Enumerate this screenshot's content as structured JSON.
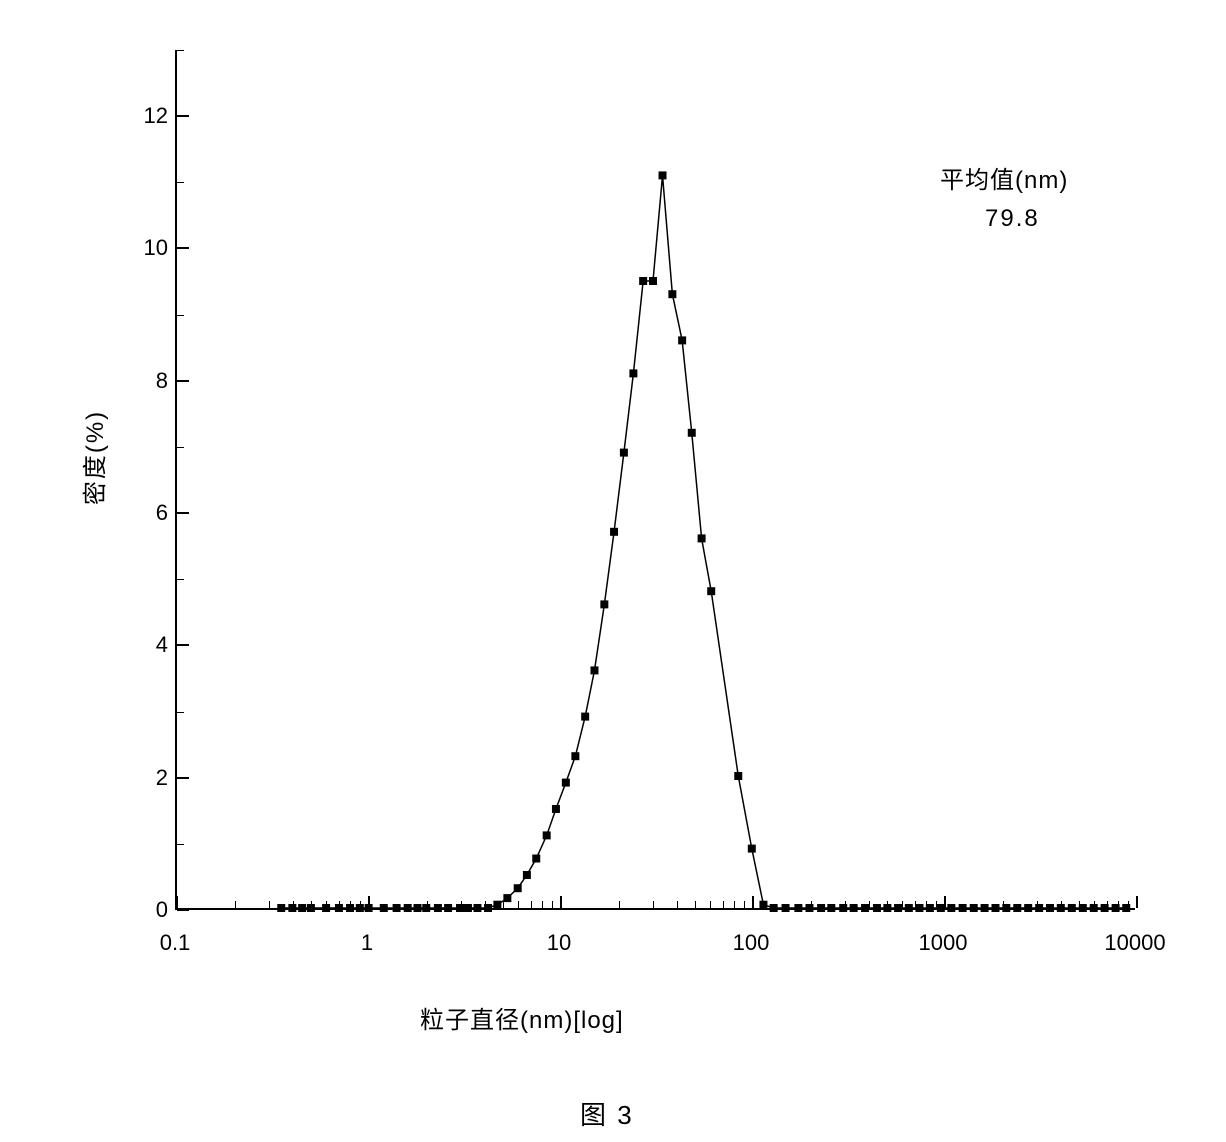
{
  "chart": {
    "type": "line-scatter",
    "y_axis": {
      "label": "密度(%)",
      "ticks": [
        0,
        2,
        4,
        6,
        8,
        10,
        12
      ],
      "minor_step": 1,
      "lim": [
        0,
        13
      ],
      "scale": "linear",
      "label_fontsize": 24,
      "tick_fontsize": 22
    },
    "x_axis": {
      "label": "粒子直径(nm)[log]",
      "ticks": [
        0.1,
        1,
        10,
        100,
        1000,
        10000
      ],
      "lim": [
        0.1,
        10000
      ],
      "scale": "log",
      "label_fontsize": 24,
      "tick_fontsize": 22
    },
    "annotation": {
      "label": "平均值(nm)",
      "value": "79.8",
      "label_fontsize": 24,
      "value_fontsize": 24
    },
    "figure_label": "图 3",
    "line_color": "#000000",
    "line_width": 1.5,
    "marker_style": "square",
    "marker_size": 8,
    "marker_color": "#000000",
    "background_color": "#ffffff",
    "data": [
      [
        0.35,
        0.0
      ],
      [
        0.4,
        0.0
      ],
      [
        0.45,
        0.0
      ],
      [
        0.5,
        0.0
      ],
      [
        0.6,
        0.0
      ],
      [
        0.7,
        0.0
      ],
      [
        0.8,
        0.0
      ],
      [
        0.9,
        0.0
      ],
      [
        1.0,
        0.0
      ],
      [
        1.2,
        0.0
      ],
      [
        1.4,
        0.0
      ],
      [
        1.6,
        0.0
      ],
      [
        1.8,
        0.0
      ],
      [
        2.0,
        0.0
      ],
      [
        2.3,
        0.0
      ],
      [
        2.6,
        0.0
      ],
      [
        3.0,
        0.0
      ],
      [
        3.3,
        0.0
      ],
      [
        3.7,
        0.0
      ],
      [
        4.2,
        0.0
      ],
      [
        4.7,
        0.05
      ],
      [
        5.3,
        0.15
      ],
      [
        6.0,
        0.3
      ],
      [
        6.7,
        0.5
      ],
      [
        7.5,
        0.75
      ],
      [
        8.5,
        1.1
      ],
      [
        9.5,
        1.5
      ],
      [
        10.7,
        1.9
      ],
      [
        12.0,
        2.3
      ],
      [
        13.5,
        2.9
      ],
      [
        15.1,
        3.6
      ],
      [
        17.0,
        4.6
      ],
      [
        19.1,
        5.7
      ],
      [
        21.5,
        6.9
      ],
      [
        24.1,
        8.1
      ],
      [
        27.1,
        9.5
      ],
      [
        30.5,
        9.5
      ],
      [
        34.2,
        11.1
      ],
      [
        38.5,
        9.3
      ],
      [
        43.3,
        8.6
      ],
      [
        48.6,
        7.2
      ],
      [
        54.7,
        5.6
      ],
      [
        61.4,
        4.8
      ],
      [
        85.0,
        2.0
      ],
      [
        100.0,
        0.9
      ],
      [
        115.0,
        0.05
      ],
      [
        130,
        0.0
      ],
      [
        150,
        0.0
      ],
      [
        175,
        0.0
      ],
      [
        200,
        0.0
      ],
      [
        230,
        0.0
      ],
      [
        260,
        0.0
      ],
      [
        300,
        0.0
      ],
      [
        340,
        0.0
      ],
      [
        390,
        0.0
      ],
      [
        450,
        0.0
      ],
      [
        510,
        0.0
      ],
      [
        580,
        0.0
      ],
      [
        660,
        0.0
      ],
      [
        750,
        0.0
      ],
      [
        850,
        0.0
      ],
      [
        970,
        0.0
      ],
      [
        1100,
        0.0
      ],
      [
        1260,
        0.0
      ],
      [
        1440,
        0.0
      ],
      [
        1640,
        0.0
      ],
      [
        1870,
        0.0
      ],
      [
        2130,
        0.0
      ],
      [
        2430,
        0.0
      ],
      [
        2770,
        0.0
      ],
      [
        3160,
        0.0
      ],
      [
        3600,
        0.0
      ],
      [
        4100,
        0.0
      ],
      [
        4680,
        0.0
      ],
      [
        5340,
        0.0
      ],
      [
        6090,
        0.0
      ],
      [
        6940,
        0.0
      ],
      [
        7920,
        0.0
      ],
      [
        9000,
        0.0
      ]
    ]
  }
}
